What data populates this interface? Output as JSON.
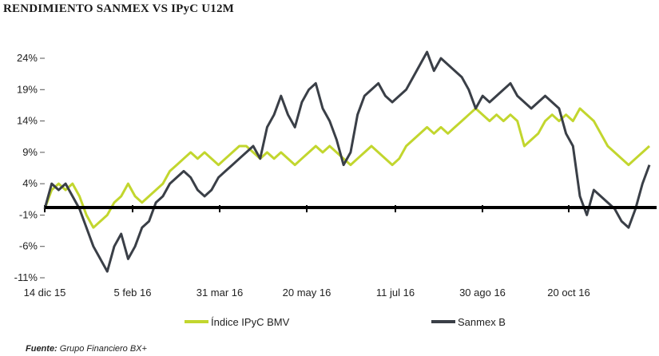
{
  "chart_data": {
    "type": "line",
    "title": "RENDIMIENTO SANMEX VS IPyC U12M",
    "xlabel": "",
    "ylabel": "",
    "x_tick_labels": [
      "14 dic 15",
      "5 feb 16",
      "31 mar 16",
      "20 may 16",
      "11 jul 16",
      "30 ago 16",
      "20 oct 16"
    ],
    "y_tick_labels": [
      "24%",
      "19%",
      "14%",
      "9%",
      "4%",
      "-1%",
      "-6%",
      "-11%"
    ],
    "y_ticks": [
      24,
      19,
      14,
      9,
      4,
      -1,
      -6,
      -11
    ],
    "ylim": [
      -11,
      26
    ],
    "grid": false,
    "legend_position": "bottom",
    "series": [
      {
        "name": "Índice IPyC BMV",
        "color": "#c2d62e",
        "values": [
          0,
          3,
          4,
          3,
          4,
          2,
          -1,
          -3,
          -2,
          -1,
          1,
          2,
          4,
          2,
          1,
          2,
          3,
          4,
          6,
          7,
          8,
          9,
          8,
          9,
          8,
          7,
          8,
          9,
          10,
          10,
          9,
          8,
          9,
          8,
          9,
          8,
          7,
          8,
          9,
          10,
          9,
          10,
          9,
          8,
          7,
          8,
          9,
          10,
          9,
          8,
          7,
          8,
          10,
          11,
          12,
          13,
          12,
          13,
          12,
          13,
          14,
          15,
          16,
          15,
          14,
          15,
          14,
          15,
          14,
          10,
          11,
          12,
          14,
          15,
          14,
          15,
          14,
          16,
          15,
          14,
          12,
          10,
          9,
          8,
          7,
          8,
          9,
          10
        ]
      },
      {
        "name": "Sanmex B",
        "color": "#3a3f47",
        "values": [
          0,
          4,
          3,
          4,
          2,
          0,
          -3,
          -6,
          -8,
          -10,
          -6,
          -4,
          -8,
          -6,
          -3,
          -2,
          1,
          2,
          4,
          5,
          6,
          5,
          3,
          2,
          3,
          5,
          6,
          7,
          8,
          9,
          10,
          8,
          13,
          15,
          18,
          15,
          13,
          17,
          19,
          20,
          16,
          14,
          11,
          7,
          9,
          15,
          18,
          19,
          20,
          18,
          17,
          18,
          19,
          21,
          23,
          25,
          22,
          24,
          23,
          22,
          21,
          19,
          16,
          18,
          17,
          18,
          19,
          20,
          18,
          17,
          16,
          17,
          18,
          17,
          16,
          12,
          10,
          2,
          -1,
          3,
          2,
          1,
          0,
          -2,
          -3,
          0,
          4,
          7
        ]
      }
    ]
  },
  "source": {
    "label": "Fuente:",
    "text": "Grupo Financiero BX+"
  }
}
